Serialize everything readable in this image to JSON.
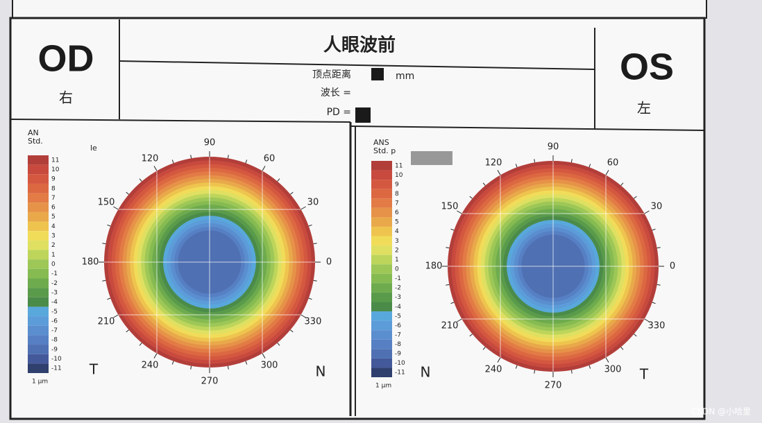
{
  "header": {
    "left": {
      "eye": "OD",
      "side": "右"
    },
    "right": {
      "eye": "OS",
      "side": "左"
    },
    "title": "人眼波前",
    "fields": [
      {
        "label": "顶点距离",
        "unit": "mm"
      },
      {
        "label": "波长 ="
      },
      {
        "label": "PD ="
      }
    ]
  },
  "panels": [
    {
      "legend_title": [
        "AN",
        "Std.",
        "le"
      ],
      "directions": [
        "T",
        "N"
      ]
    },
    {
      "legend_title": [
        "ANS",
        "Std. p"
      ],
      "directions": [
        "N",
        "T"
      ]
    }
  ],
  "legend": {
    "levels": [
      11,
      10,
      9,
      8,
      7,
      6,
      5,
      4,
      3,
      2,
      1,
      0,
      -1,
      -2,
      -3,
      -4,
      -5,
      -6,
      -7,
      -8,
      -9,
      -10,
      -11
    ],
    "colors": [
      "#b23e3a",
      "#c84a3e",
      "#d45840",
      "#dc6842",
      "#e27b45",
      "#e69248",
      "#e9a94b",
      "#eec44e",
      "#f1dc5a",
      "#dfe062",
      "#bdd55b",
      "#9dc757",
      "#86bb52",
      "#6eab4e",
      "#5a9b4b",
      "#4b8b4a",
      "#59a8dc",
      "#5c9cd9",
      "#5a8ecf",
      "#5680c3",
      "#4f70b2",
      "#43599a",
      "#2f3f6e"
    ],
    "unit": "1 µm"
  },
  "angles": [
    90,
    60,
    30,
    0,
    330,
    300,
    270,
    240,
    210,
    180,
    150,
    120
  ],
  "watermark": "CSDN @小哈里"
}
